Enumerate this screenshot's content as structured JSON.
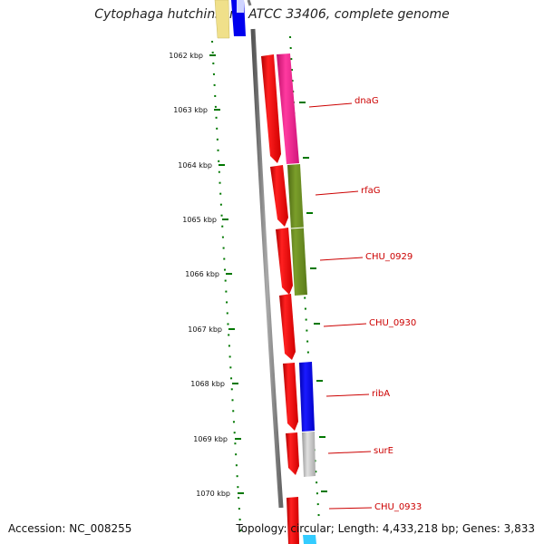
{
  "title": "Cytophaga hutchinsonii ATCC 33406, complete genome",
  "accession": "Accession: NC_008255",
  "topology": "Topology: circular; Length: 4,433,218 bp; Genes: 3,833",
  "kbp_labels": [
    "1062 kbp",
    "1063 kbp",
    "1064 kbp",
    "1065 kbp",
    "1066 kbp",
    "1067 kbp",
    "1068 kbp",
    "1069 kbp",
    "1070 kbp"
  ],
  "gene_labels": [
    "dnaG",
    "rfaG",
    "CHU_0929",
    "CHU_0930",
    "ribA",
    "surE",
    "CHU_0933"
  ],
  "colors": {
    "forward": "#ff0000",
    "dnaG_cog": "#ff1493",
    "rfaG_cog": "#6b8e23",
    "ribA_cog": "#0000ff",
    "surE_cog": "#bbbbbb",
    "tick": "#007700",
    "label": "#cc0000"
  }
}
